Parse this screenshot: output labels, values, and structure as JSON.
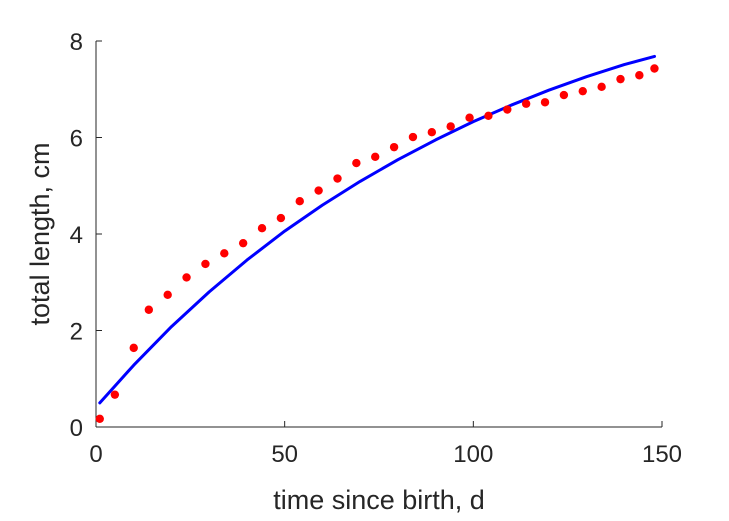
{
  "chart_data": {
    "type": "scatter",
    "xlabel": "time since birth, d",
    "ylabel": "total length, cm",
    "xlim": [
      0,
      150
    ],
    "ylim": [
      0,
      8
    ],
    "xticks": [
      0,
      50,
      100,
      150
    ],
    "yticks": [
      0,
      2,
      4,
      6,
      8
    ],
    "grid": false,
    "series": [
      {
        "kind": "scatter",
        "color": "#ff0000",
        "x": [
          1,
          5,
          10,
          14,
          19,
          24,
          29,
          34,
          39,
          44,
          49,
          54,
          59,
          64,
          69,
          74,
          79,
          84,
          89,
          94,
          99,
          104,
          109,
          114,
          119,
          124,
          129,
          134,
          139,
          144,
          148
        ],
        "y": [
          0.17,
          0.67,
          1.64,
          2.43,
          2.74,
          3.1,
          3.38,
          3.6,
          3.81,
          4.12,
          4.33,
          4.68,
          4.9,
          5.15,
          5.47,
          5.6,
          5.8,
          6.01,
          6.11,
          6.23,
          6.41,
          6.45,
          6.58,
          6.7,
          6.73,
          6.88,
          6.96,
          7.05,
          7.21,
          7.29,
          7.43
        ]
      },
      {
        "kind": "line",
        "color": "#0000ff",
        "x": [
          1,
          10,
          20,
          30,
          40,
          50,
          60,
          70,
          80,
          90,
          100,
          110,
          120,
          130,
          140,
          148
        ],
        "y": [
          0.5,
          1.28,
          2.08,
          2.8,
          3.46,
          4.06,
          4.6,
          5.09,
          5.54,
          5.95,
          6.33,
          6.67,
          6.98,
          7.26,
          7.51,
          7.68
        ]
      }
    ]
  }
}
